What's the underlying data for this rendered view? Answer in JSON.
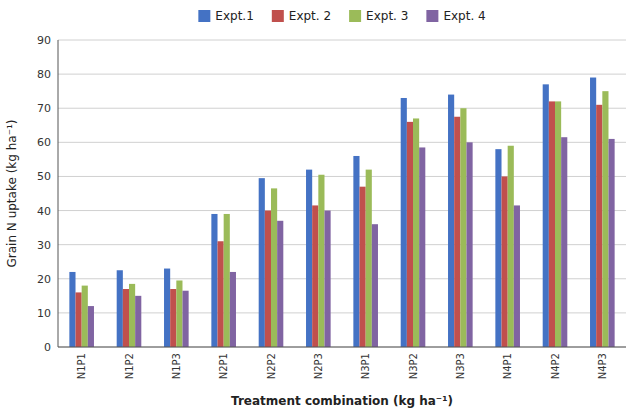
{
  "chart_data": {
    "type": "bar",
    "categories": [
      "N1P1",
      "N1P2",
      "N1P3",
      "N2P1",
      "N2P2",
      "N2P3",
      "N3P1",
      "N3P2",
      "N3P3",
      "N4P1",
      "N4P2",
      "N4P3"
    ],
    "series": [
      {
        "name": "Expt.1",
        "color": "#4472C4",
        "values": [
          22,
          22.5,
          23,
          39,
          49.5,
          52,
          56,
          73,
          74,
          58,
          77,
          79
        ]
      },
      {
        "name": "Expt. 2",
        "color": "#C0504D",
        "values": [
          16,
          17,
          17,
          31,
          40,
          41.5,
          47,
          66,
          67.5,
          50,
          72,
          71
        ]
      },
      {
        "name": "Expt. 3",
        "color": "#9BBB59",
        "values": [
          18,
          18.5,
          19.5,
          39,
          46.5,
          50.5,
          52,
          67,
          70,
          59,
          72,
          75
        ]
      },
      {
        "name": "Expt. 4",
        "color": "#8064A2",
        "values": [
          12,
          15,
          16.5,
          22,
          37,
          40,
          36,
          58.5,
          60,
          41.5,
          61.5,
          61
        ]
      }
    ],
    "xlabel": "Treatment combination (kg ha⁻¹)",
    "ylabel": "Grain N uptake (kg ha⁻¹)",
    "ylim": [
      0,
      90
    ],
    "yticks": [
      0,
      10,
      20,
      30,
      40,
      50,
      60,
      70,
      80,
      90
    ],
    "grid": true,
    "legend": "top"
  }
}
